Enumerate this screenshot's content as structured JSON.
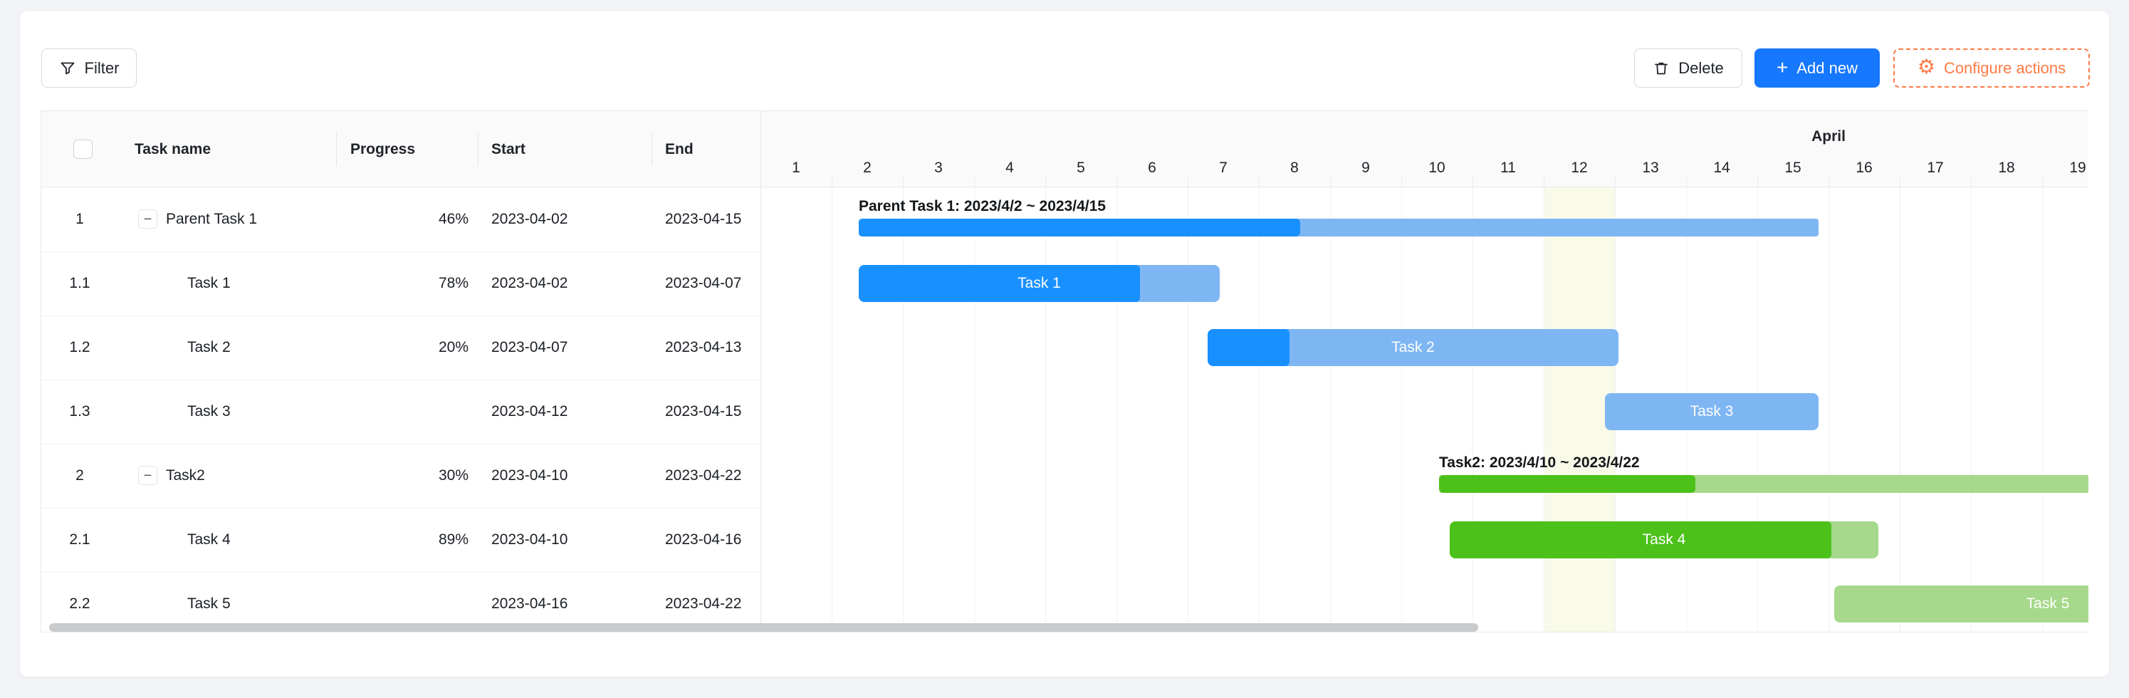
{
  "toolbar": {
    "filter": {
      "label": "Filter",
      "icon": "funnel-icon"
    },
    "delete": {
      "label": "Delete",
      "icon": "trash-icon"
    },
    "add_new": {
      "label": "Add new",
      "plus_glyph": "+"
    },
    "configure_actions": {
      "label": "Configure actions",
      "gear_glyph": "⚙",
      "accent_color": "#ff7a45"
    }
  },
  "table": {
    "columns": [
      {
        "id": "select",
        "label": ""
      },
      {
        "id": "name",
        "label": "Task name"
      },
      {
        "id": "progress",
        "label": "Progress"
      },
      {
        "id": "start",
        "label": "Start"
      },
      {
        "id": "end",
        "label": "End"
      }
    ],
    "rows": [
      {
        "index": "1",
        "name": "Parent Task 1",
        "progress": "46%",
        "start": "2023-04-02",
        "end": "2023-04-15",
        "is_parent": true,
        "collapse_glyph": "−"
      },
      {
        "index": "1.1",
        "name": "Task 1",
        "progress": "78%",
        "start": "2023-04-02",
        "end": "2023-04-07",
        "is_parent": false
      },
      {
        "index": "1.2",
        "name": "Task 2",
        "progress": "20%",
        "start": "2023-04-07",
        "end": "2023-04-13",
        "is_parent": false
      },
      {
        "index": "1.3",
        "name": "Task 3",
        "progress": "",
        "start": "2023-04-12",
        "end": "2023-04-15",
        "is_parent": false
      },
      {
        "index": "2",
        "name": "Task2",
        "progress": "30%",
        "start": "2023-04-10",
        "end": "2023-04-22",
        "is_parent": true,
        "collapse_glyph": "−"
      },
      {
        "index": "2.1",
        "name": "Task 4",
        "progress": "89%",
        "start": "2023-04-10",
        "end": "2023-04-16",
        "is_parent": false
      },
      {
        "index": "2.2",
        "name": "Task 5",
        "progress": "",
        "start": "2023-04-16",
        "end": "2023-04-22",
        "is_parent": false
      }
    ]
  },
  "timeline": {
    "month_label": "April",
    "days": [
      1,
      2,
      3,
      4,
      5,
      6,
      7,
      8,
      9,
      10,
      11,
      12,
      13,
      14,
      15,
      16,
      17,
      18,
      19
    ],
    "today_day": 12
  },
  "gantt_bars": [
    {
      "id": "p1",
      "row": 0,
      "type": "parent",
      "label": "Parent Task 1: 2023/4/2 ~ 2023/4/15",
      "progress": 46,
      "palette": "blue"
    },
    {
      "id": "t1",
      "row": 1,
      "type": "task",
      "label": "Task 1",
      "progress": 78,
      "palette": "blue"
    },
    {
      "id": "t2",
      "row": 2,
      "type": "task",
      "label": "Task 2",
      "progress": 20,
      "palette": "blue"
    },
    {
      "id": "t3",
      "row": 3,
      "type": "task",
      "label": "Task 3",
      "progress": 0,
      "palette": "blue-light"
    },
    {
      "id": "p2",
      "row": 4,
      "type": "parent",
      "label": "Task2: 2023/4/10 ~ 2023/4/22",
      "progress": 30,
      "palette": "green"
    },
    {
      "id": "t4",
      "row": 5,
      "type": "task",
      "label": "Task 4",
      "progress": 89,
      "palette": "green"
    },
    {
      "id": "t5",
      "row": 6,
      "type": "task",
      "label": "Task 5",
      "progress": 0,
      "palette": "green-light"
    }
  ],
  "colors": {
    "bar_blue": "#1890ff",
    "bar_blue_light": "#7eb6f3",
    "bar_green": "#4cc11a",
    "bar_green_light": "#a6d98b",
    "today_highlight": "#fafae9",
    "add_new_bg": "#1677ff",
    "configure_accent": "#ff7a45",
    "scrollbar_thumb": "#c9cacc"
  },
  "chart_data": {
    "type": "gantt",
    "timeline": {
      "month": "April",
      "visible_days": [
        1,
        2,
        3,
        4,
        5,
        6,
        7,
        8,
        9,
        10,
        11,
        12,
        13,
        14,
        15,
        16,
        17,
        18,
        19
      ],
      "today": "2023-04-12"
    },
    "tasks": [
      {
        "id": "1",
        "name": "Parent Task 1",
        "start": "2023-04-02",
        "end": "2023-04-15",
        "progress": 46,
        "color": "blue",
        "children": [
          "1.1",
          "1.2",
          "1.3"
        ]
      },
      {
        "id": "1.1",
        "name": "Task 1",
        "start": "2023-04-02",
        "end": "2023-04-07",
        "progress": 78,
        "color": "blue"
      },
      {
        "id": "1.2",
        "name": "Task 2",
        "start": "2023-04-07",
        "end": "2023-04-13",
        "progress": 20,
        "color": "blue"
      },
      {
        "id": "1.3",
        "name": "Task 3",
        "start": "2023-04-12",
        "end": "2023-04-15",
        "progress": null,
        "color": "light-blue"
      },
      {
        "id": "2",
        "name": "Task2",
        "start": "2023-04-10",
        "end": "2023-04-22",
        "progress": 30,
        "color": "green",
        "children": [
          "2.1",
          "2.2"
        ]
      },
      {
        "id": "2.1",
        "name": "Task 4",
        "start": "2023-04-10",
        "end": "2023-04-16",
        "progress": 89,
        "color": "green"
      },
      {
        "id": "2.2",
        "name": "Task 5",
        "start": "2023-04-16",
        "end": "2023-04-22",
        "progress": null,
        "color": "light-green"
      }
    ]
  }
}
